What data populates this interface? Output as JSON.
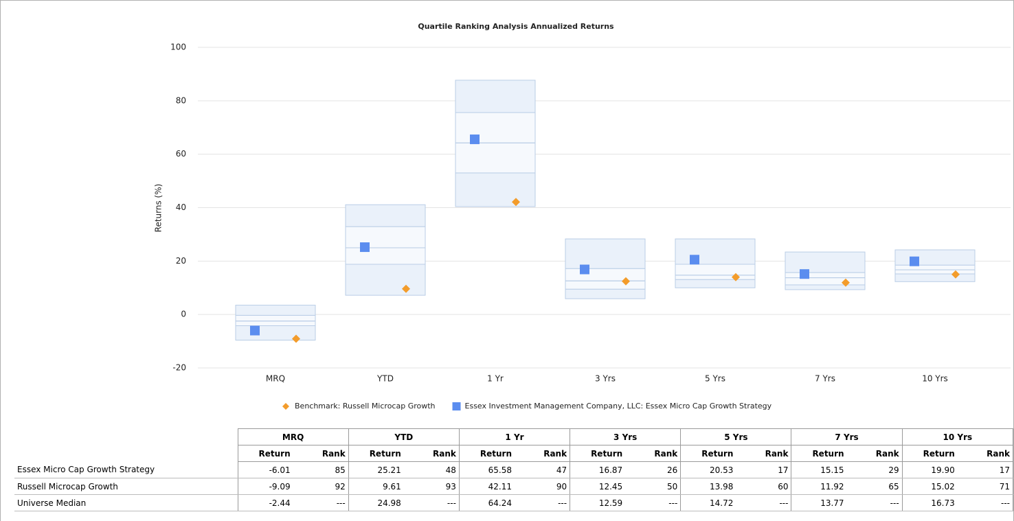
{
  "chart_data": {
    "type": "box",
    "title": "Quartile Ranking Analysis Annualized Returns",
    "y_label": "Returns (%)",
    "categories": [
      "MRQ",
      "YTD",
      "1 Yr",
      "3 Yrs",
      "5 Yrs",
      "7 Yrs",
      "10 Yrs"
    ],
    "boxes": [
      [
        -9.6,
        -4.2,
        -2.44,
        -0.3,
        3.5
      ],
      [
        7.2,
        18.8,
        24.98,
        32.9,
        41.1
      ],
      [
        40.4,
        53.0,
        64.24,
        75.6,
        87.7
      ],
      [
        5.9,
        9.5,
        12.59,
        17.2,
        28.3
      ],
      [
        10.0,
        13.1,
        14.72,
        18.8,
        28.3
      ],
      [
        9.3,
        11.1,
        13.77,
        15.7,
        23.4
      ],
      [
        12.3,
        15.2,
        16.73,
        18.5,
        24.2
      ]
    ],
    "box_color": "#eaf1fa",
    "box_inner_color": "#f6f9fd",
    "box_edge_color": "#b9cde6",
    "series": [
      {
        "name": "Benchmark: Russell Microcap Growth",
        "color": "#f39c2b",
        "marker": "diamond",
        "values": [
          -9.09,
          9.61,
          42.11,
          12.45,
          13.98,
          11.92,
          15.02
        ]
      },
      {
        "name": "Essex Investment Management Company, LLC: Essex Micro Cap Growth Strategy",
        "color": "#5b8def",
        "marker": "square",
        "values": [
          -6.01,
          25.21,
          65.58,
          16.87,
          20.53,
          15.15,
          19.9
        ]
      }
    ],
    "ylim": [
      -20,
      100
    ],
    "yticks": [
      -20,
      0,
      20,
      40,
      60,
      80,
      100
    ],
    "grid": true,
    "legend": "bottom"
  },
  "table": {
    "subheaders": [
      "Return",
      "Rank"
    ],
    "rows": [
      [
        "Essex Micro Cap Growth Strategy",
        "-6.01",
        "85",
        "25.21",
        "48",
        "65.58",
        "47",
        "16.87",
        "26",
        "20.53",
        "17",
        "15.15",
        "29",
        "19.90",
        "17"
      ],
      [
        "Russell Microcap Growth",
        "-9.09",
        "92",
        "9.61",
        "93",
        "42.11",
        "90",
        "12.45",
        "50",
        "13.98",
        "60",
        "11.92",
        "65",
        "15.02",
        "71"
      ],
      [
        "Universe Median",
        "-2.44",
        "---",
        "24.98",
        "---",
        "64.24",
        "---",
        "12.59",
        "---",
        "14.72",
        "---",
        "13.77",
        "---",
        "16.73",
        "---"
      ]
    ]
  }
}
